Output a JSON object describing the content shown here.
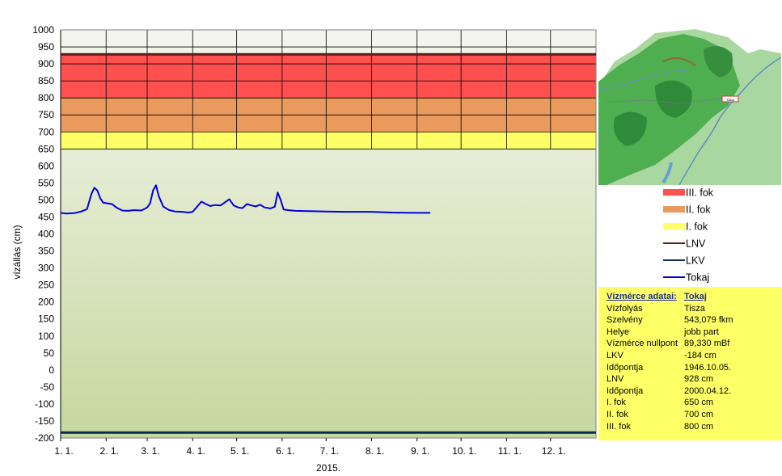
{
  "chart_data": {
    "type": "line",
    "title": "",
    "xlabel": "2015.",
    "ylabel": "vízállás (cm)",
    "ylim": [
      -200,
      1000
    ],
    "yticks": [
      1000,
      950,
      900,
      850,
      800,
      750,
      700,
      650,
      600,
      550,
      500,
      450,
      400,
      350,
      300,
      250,
      200,
      150,
      100,
      50,
      0,
      -50,
      -100,
      -150,
      -200
    ],
    "xticks": [
      "1. 1.",
      "2. 1.",
      "3. 1.",
      "4. 1.",
      "5. 1.",
      "6. 1.",
      "7. 1.",
      "8. 1.",
      "9. 1.",
      "10. 1.",
      "11. 1.",
      "12. 1."
    ],
    "grid": true,
    "bands": [
      {
        "name": "III. fok",
        "from": 800,
        "to": 928,
        "color": "#ff5050"
      },
      {
        "name": "II. fok",
        "from": 700,
        "to": 800,
        "color": "#ea9a5c"
      },
      {
        "name": "I. fok",
        "from": 650,
        "to": 700,
        "color": "#ffff66"
      }
    ],
    "reference_lines": [
      {
        "name": "LNV",
        "value": 928,
        "color": "#5c1a10"
      },
      {
        "name": "LKV",
        "value": -184,
        "color": "#0d2a55"
      }
    ],
    "series": [
      {
        "name": "Tokaj",
        "color": "#0000dd",
        "x": [
          "2015-01-01",
          "2015-01-05",
          "2015-01-10",
          "2015-01-15",
          "2015-01-19",
          "2015-01-22",
          "2015-01-24",
          "2015-01-26",
          "2015-01-28",
          "2015-01-30",
          "2015-02-02",
          "2015-02-05",
          "2015-02-08",
          "2015-02-12",
          "2015-02-16",
          "2015-02-20",
          "2015-02-25",
          "2015-03-01",
          "2015-03-03",
          "2015-03-05",
          "2015-03-07",
          "2015-03-09",
          "2015-03-12",
          "2015-03-16",
          "2015-03-20",
          "2015-03-25",
          "2015-03-29",
          "2015-04-01",
          "2015-04-04",
          "2015-04-07",
          "2015-04-10",
          "2015-04-13",
          "2015-04-16",
          "2015-04-20",
          "2015-04-23",
          "2015-04-26",
          "2015-04-29",
          "2015-05-02",
          "2015-05-05",
          "2015-05-08",
          "2015-05-11",
          "2015-05-14",
          "2015-05-17",
          "2015-05-20",
          "2015-05-24",
          "2015-05-27",
          "2015-05-29",
          "2015-05-31",
          "2015-06-02",
          "2015-06-05",
          "2015-06-10",
          "2015-06-20",
          "2015-07-01",
          "2015-07-15",
          "2015-08-01",
          "2015-08-15",
          "2015-09-01",
          "2015-09-10"
        ],
        "values": [
          462,
          460,
          461,
          466,
          473,
          518,
          536,
          528,
          505,
          492,
          490,
          488,
          478,
          469,
          468,
          470,
          469,
          478,
          490,
          528,
          543,
          510,
          480,
          470,
          466,
          465,
          463,
          465,
          480,
          495,
          488,
          482,
          485,
          484,
          493,
          502,
          484,
          478,
          476,
          488,
          484,
          481,
          486,
          478,
          475,
          480,
          522,
          500,
          472,
          470,
          468,
          467,
          466,
          465,
          465,
          463,
          462,
          462
        ]
      }
    ]
  },
  "legend": [
    {
      "name": "III. fok",
      "kind": "box",
      "color": "#ff5050"
    },
    {
      "name": "II. fok",
      "kind": "box",
      "color": "#ea9a5c"
    },
    {
      "name": "I. fok",
      "kind": "box",
      "color": "#ffff66"
    },
    {
      "name": "LNV",
      "kind": "line",
      "color": "#5c1a10"
    },
    {
      "name": "LKV",
      "kind": "line",
      "color": "#0d2a55"
    },
    {
      "name": "Tokaj",
      "kind": "line",
      "color": "#0000dd"
    }
  ],
  "info": {
    "header_key": "Vízmérce adatai:",
    "header_value": "Tokaj",
    "rows": [
      {
        "k": "Vízfolyás",
        "v": "Tisza"
      },
      {
        "k": "Szelvény",
        "v": "543,079 fkm"
      },
      {
        "k": "Helye",
        "v": "jobb part"
      },
      {
        "k": "Vízmérce nullpont",
        "v": "89,330 mBf"
      },
      {
        "k": "LKV",
        "v": "-184 cm"
      },
      {
        "k": "Időpontja",
        "v": "1946.10.05."
      },
      {
        "k": "LNV",
        "v": "928 cm"
      },
      {
        "k": "Időpontja",
        "v": "2000.04.12."
      },
      {
        "k": "I. fok",
        "v": "650 cm"
      },
      {
        "k": "II. fok",
        "v": "700 cm"
      },
      {
        "k": "III. fok",
        "v": "800 cm"
      }
    ]
  },
  "map": {
    "marker_label": "Tokaj"
  }
}
